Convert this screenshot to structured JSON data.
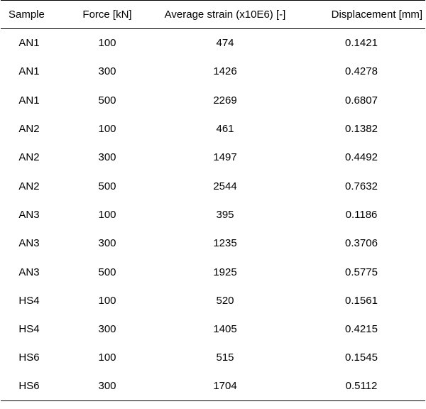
{
  "table": {
    "headers": [
      "Sample",
      "Force [kN]",
      "Average strain (x10E6) [-]",
      "Displacement [mm]"
    ],
    "rows": [
      [
        "AN1",
        "100",
        "474",
        "0.1421"
      ],
      [
        "AN1",
        "300",
        "1426",
        "0.4278"
      ],
      [
        "AN1",
        "500",
        "2269",
        "0.6807"
      ],
      [
        "AN2",
        "100",
        "461",
        "0.1382"
      ],
      [
        "AN2",
        "300",
        "1497",
        "0.4492"
      ],
      [
        "AN2",
        "500",
        "2544",
        "0.7632"
      ],
      [
        "AN3",
        "100",
        "395",
        "0.1186"
      ],
      [
        "AN3",
        "300",
        "1235",
        "0.3706"
      ],
      [
        "AN3",
        "500",
        "1925",
        "0.5775"
      ],
      [
        "HS4",
        "100",
        "520",
        "0.1561"
      ],
      [
        "HS4",
        "300",
        "1405",
        "0.4215"
      ],
      [
        "HS6",
        "100",
        "515",
        "0.1545"
      ],
      [
        "HS6",
        "300",
        "1704",
        "0.5112"
      ]
    ]
  }
}
